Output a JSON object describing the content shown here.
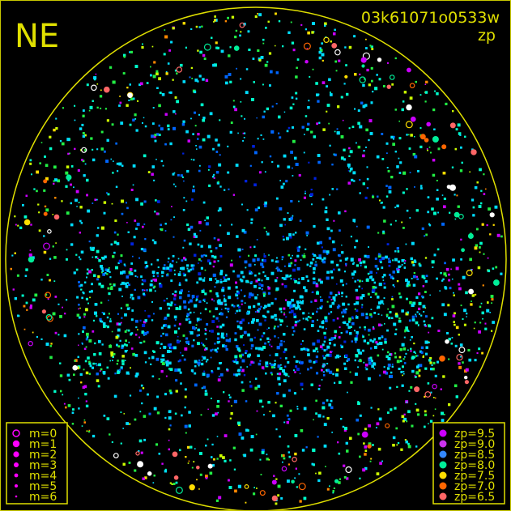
{
  "chart_data": {
    "type": "scatter",
    "title": "03k61071o0533w",
    "subtitle": "zp",
    "corner_label": "NE",
    "grid": false,
    "colors": {
      "frame": "#e0e000",
      "text": "#e0e000",
      "background": "#000000"
    },
    "size_legend": {
      "placement": "bottom-left",
      "entries": [
        "m=0",
        "m=1",
        "m=2",
        "m=3",
        "m=4",
        "m=5",
        "m=6"
      ],
      "color": "#ff00ff"
    },
    "color_legend": {
      "placement": "bottom-right",
      "entries": [
        {
          "label": "zp=9.5",
          "color": "#cc00ff"
        },
        {
          "label": "zp=9.0",
          "color": "#cc33ee"
        },
        {
          "label": "zp=8.5",
          "color": "#3388ff"
        },
        {
          "label": "zp=8.0",
          "color": "#00ee99"
        },
        {
          "label": "zp=7.5",
          "color": "#ffdd00"
        },
        {
          "label": "zp=7.0",
          "color": "#ff6600"
        },
        {
          "label": "zp=6.5",
          "color": "#ff6666"
        }
      ]
    },
    "field_colors": [
      "#00ddff",
      "#0066ff",
      "#0022dd",
      "#00ffcc",
      "#22ee44",
      "#ccff00",
      "#cc00ff"
    ]
  }
}
